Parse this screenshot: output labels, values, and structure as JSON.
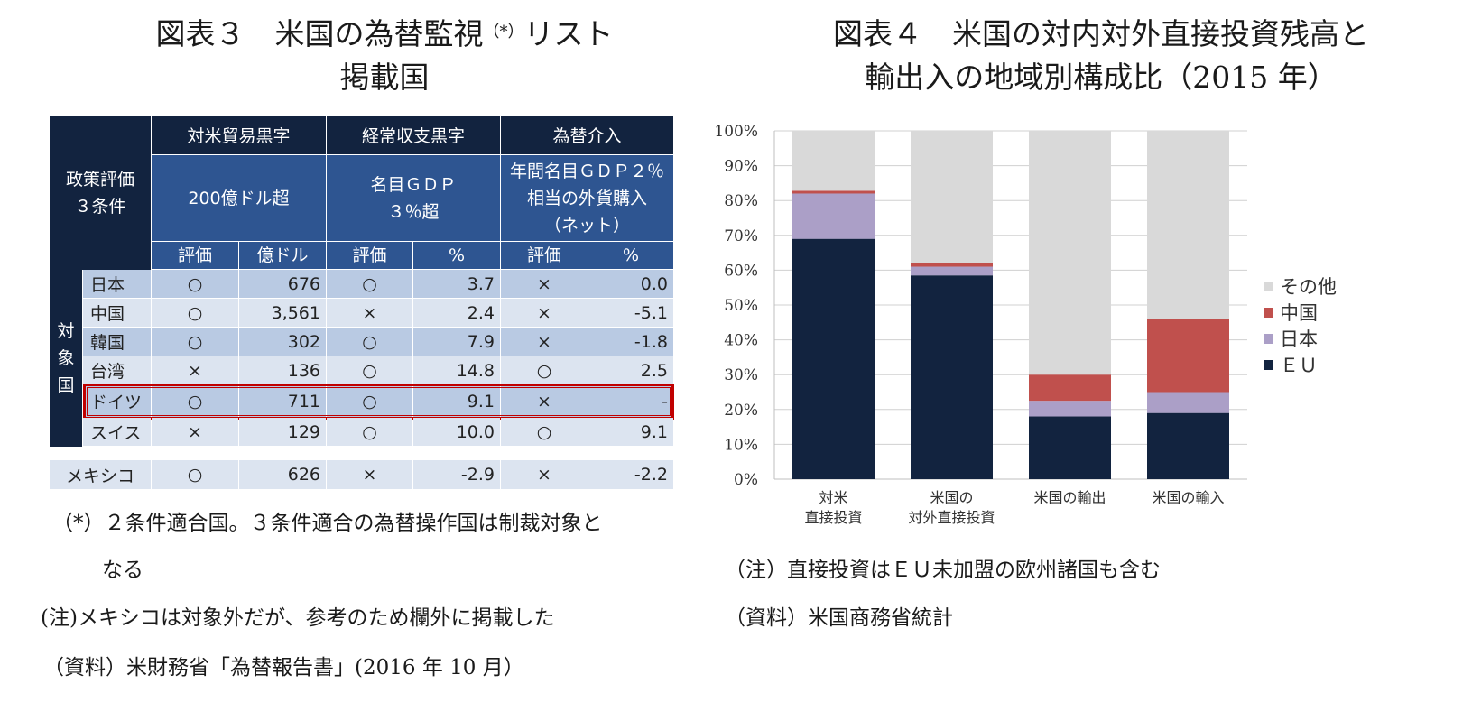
{
  "left": {
    "title_line1": "図表３　米国の為替監視",
    "title_sup": "（*）",
    "title_line1_end": "リスト",
    "title_line2": "掲載国",
    "table": {
      "criteria_label": "政策評価\n３条件",
      "target_label": "対\n象\n国",
      "groups": [
        {
          "name": "対米貿易黒字",
          "threshold": "200億ドル超",
          "cols": [
            "評価",
            "億ドル"
          ]
        },
        {
          "name": "経常収支黒字",
          "threshold": "名目ＧＤＰ\n３％超",
          "cols": [
            "評価",
            "%"
          ]
        },
        {
          "name": "為替介入",
          "threshold": "年間名目ＧＤＰ２％\n相当の外貨購入\n（ネット）",
          "cols": [
            "評価",
            "%"
          ]
        }
      ],
      "rows": [
        [
          "日本",
          "○",
          "676",
          "○",
          "3.7",
          "×",
          "0.0"
        ],
        [
          "中国",
          "○",
          "3,561",
          "×",
          "2.4",
          "×",
          "-5.1"
        ],
        [
          "韓国",
          "○",
          "302",
          "○",
          "7.9",
          "×",
          "-1.8"
        ],
        [
          "台湾",
          "×",
          "136",
          "○",
          "14.8",
          "○",
          "2.5"
        ],
        [
          "ドイツ",
          "○",
          "711",
          "○",
          "9.1",
          "×",
          "-"
        ],
        [
          "スイス",
          "×",
          "129",
          "○",
          "10.0",
          "○",
          "9.1"
        ]
      ],
      "extra_row": [
        "メキシコ",
        "○",
        "626",
        "×",
        "-2.9",
        "×",
        "-2.2"
      ],
      "highlight_row": "ドイツ",
      "colors": {
        "header_dark": "#12233f",
        "header_mid": "#2e5591",
        "row_a": "#b9cae3",
        "row_b": "#dce4f0",
        "highlight": "#c00000"
      }
    },
    "notes": [
      "（*）２条件適合国。３条件適合の為替操作国は制裁対象と",
      "なる",
      "(注)メキシコは対象外だが、参考のため欄外に掲載した",
      "（資料）米財務省「為替報告書」(2016 年 10 月）"
    ]
  },
  "right": {
    "title_line1": "図表４　米国の対内対外直接投資残高と",
    "title_line2": "輸出入の地域別構成比（2015 年）",
    "notes": [
      "（注）直接投資はＥＵ未加盟の欧州諸国も含む",
      "（資料）米国商務省統計"
    ]
  },
  "chart_data": {
    "type": "bar",
    "stacked": true,
    "categories": [
      "対米\n直接投資",
      "米国の\n対外直接投資",
      "米国の輸出",
      "米国の輸入"
    ],
    "series": [
      {
        "name": "ＥＵ",
        "color": "#12233f",
        "values": [
          69,
          58.5,
          18,
          19
        ]
      },
      {
        "name": "日本",
        "color": "#ab9fc7",
        "values": [
          13,
          2.5,
          4.5,
          6
        ]
      },
      {
        "name": "中国",
        "color": "#c0504d",
        "values": [
          0.8,
          1,
          7.5,
          21
        ]
      },
      {
        "name": "その他",
        "color": "#d9d9d9",
        "values": [
          17.2,
          38,
          70,
          54
        ]
      }
    ],
    "ylim": [
      0,
      100
    ],
    "yticks": [
      "0%",
      "10%",
      "20%",
      "30%",
      "40%",
      "50%",
      "60%",
      "70%",
      "80%",
      "90%",
      "100%"
    ],
    "grid": true,
    "legend": "right",
    "legend_order": [
      "その他",
      "中国",
      "日本",
      "ＥＵ"
    ]
  }
}
